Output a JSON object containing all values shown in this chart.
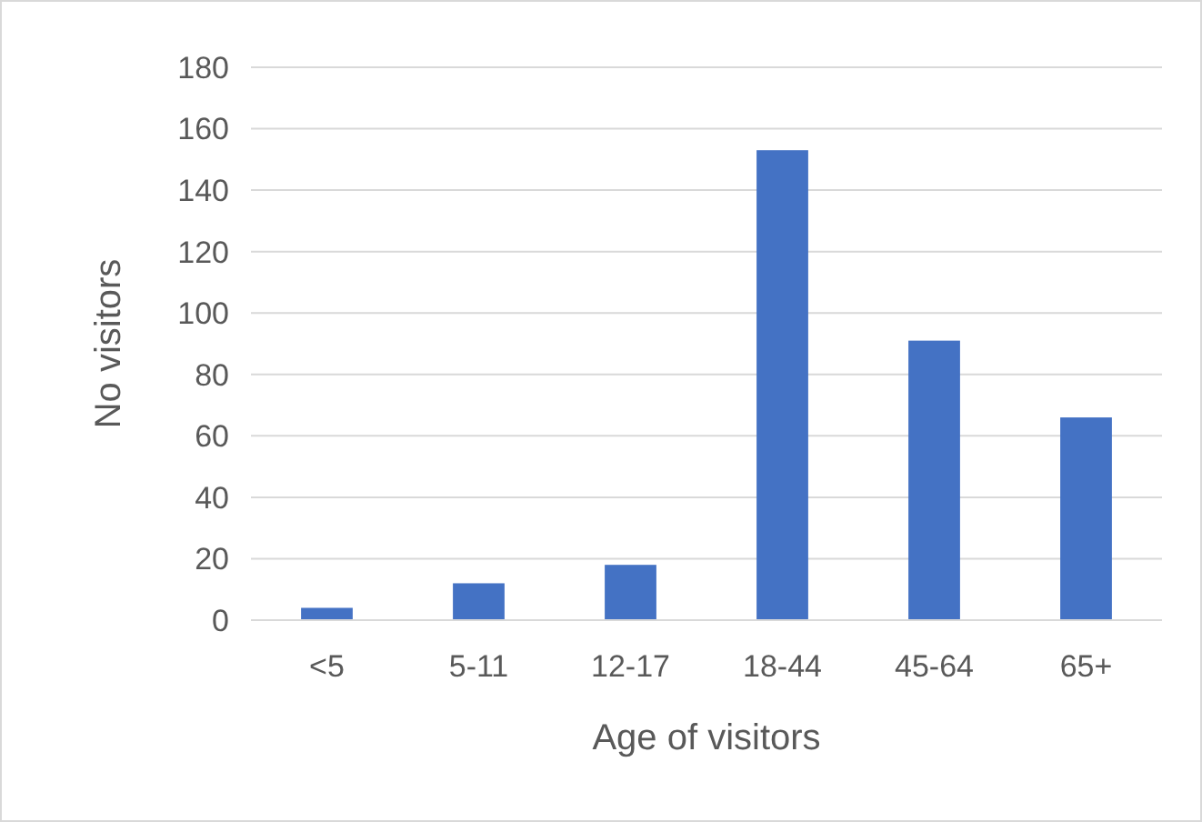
{
  "chart_data": {
    "type": "bar",
    "xlabel": "Age of visitors",
    "ylabel": "No visitors",
    "categories": [
      "<5",
      "5-11",
      "12-17",
      "18-44",
      "45-64",
      "65+"
    ],
    "values": [
      4,
      12,
      18,
      153,
      91,
      66
    ],
    "color": "#4472c4",
    "ylim": [
      0,
      180
    ],
    "yticks": [
      0,
      20,
      40,
      60,
      80,
      100,
      120,
      140,
      160,
      180
    ],
    "grid": "y"
  }
}
